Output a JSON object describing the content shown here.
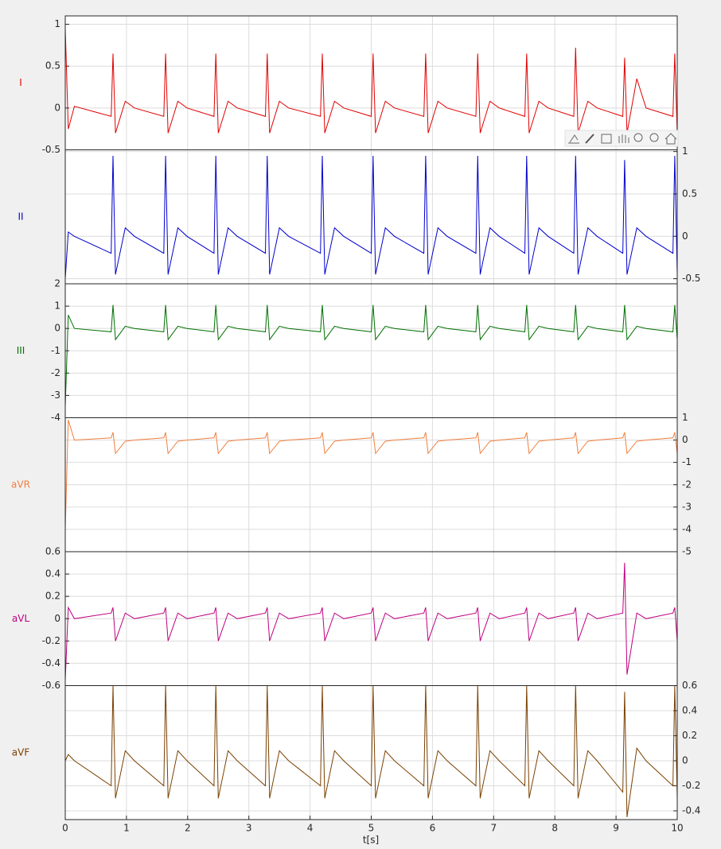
{
  "chart_data": {
    "type": "line",
    "xlabel": "t[s]",
    "grid": true,
    "xlim": [
      0,
      10
    ],
    "xticks": [
      0,
      1,
      2,
      3,
      4,
      5,
      6,
      7,
      8,
      9,
      10
    ],
    "x": [
      0,
      0.05,
      0.15,
      0.75,
      0.78,
      0.82,
      0.98,
      1.13,
      1.61,
      1.64,
      1.68,
      1.84,
      1.99,
      2.43,
      2.46,
      2.5,
      2.66,
      2.81,
      3.27,
      3.3,
      3.34,
      3.5,
      3.65,
      4.17,
      4.2,
      4.24,
      4.4,
      4.55,
      5,
      5.03,
      5.07,
      5.23,
      5.38,
      5.86,
      5.89,
      5.93,
      6.09,
      6.24,
      6.71,
      6.74,
      6.78,
      6.94,
      7.09,
      7.51,
      7.54,
      7.58,
      7.74,
      7.89,
      8.31,
      8.34,
      8.38,
      8.54,
      8.69,
      9.11,
      9.14,
      9.18,
      9.34,
      9.49,
      9.93,
      9.96,
      10
    ],
    "series": [
      {
        "name": "I",
        "color": "#e00000",
        "axis_side": "left",
        "ylim": [
          -0.5,
          1.1
        ],
        "yticks": [
          -0.5,
          0,
          0.5,
          1
        ],
        "values": [
          0.95,
          -0.25,
          0.02,
          -0.1,
          0.65,
          -0.3,
          0.08,
          0,
          -0.1,
          0.65,
          -0.3,
          0.08,
          0,
          -0.1,
          0.65,
          -0.3,
          0.08,
          0,
          -0.1,
          0.65,
          -0.3,
          0.08,
          0,
          -0.1,
          0.65,
          -0.3,
          0.08,
          0,
          -0.1,
          0.65,
          -0.3,
          0.08,
          0,
          -0.1,
          0.65,
          -0.3,
          0.08,
          0,
          -0.1,
          0.65,
          -0.3,
          0.08,
          0,
          -0.1,
          0.65,
          -0.3,
          0.08,
          0,
          -0.1,
          0.72,
          -0.3,
          0.08,
          0,
          -0.1,
          0.6,
          -0.3,
          0.35,
          0,
          -0.1,
          0.65,
          -0.3
        ]
      },
      {
        "name": "II",
        "color": "#0000cc",
        "axis_side": "right",
        "ylim": [
          -0.56,
          1.02
        ],
        "yticks": [
          -0.5,
          0,
          0.5,
          1
        ],
        "values": [
          -0.5,
          0.05,
          0,
          -0.2,
          0.95,
          -0.45,
          0.1,
          0,
          -0.2,
          0.95,
          -0.45,
          0.1,
          0,
          -0.2,
          0.95,
          -0.45,
          0.1,
          0,
          -0.2,
          0.95,
          -0.45,
          0.1,
          0,
          -0.2,
          0.95,
          -0.45,
          0.1,
          0,
          -0.2,
          0.95,
          -0.45,
          0.1,
          0,
          -0.2,
          0.95,
          -0.45,
          0.1,
          0,
          -0.2,
          0.95,
          -0.45,
          0.1,
          0,
          -0.2,
          0.95,
          -0.45,
          0.1,
          0,
          -0.2,
          0.95,
          -0.45,
          0.1,
          0,
          -0.2,
          0.9,
          -0.45,
          0.1,
          0,
          -0.2,
          0.95,
          -0.45
        ]
      },
      {
        "name": "III",
        "color": "#007000",
        "axis_side": "left",
        "ylim": [
          -4,
          2
        ],
        "yticks": [
          2,
          1,
          0,
          -1,
          -2,
          -3,
          -4
        ],
        "values": [
          -3.5,
          0.6,
          0,
          -0.15,
          1.05,
          -0.5,
          0.1,
          0,
          -0.15,
          1.05,
          -0.5,
          0.1,
          0,
          -0.15,
          1.05,
          -0.5,
          0.1,
          0,
          -0.15,
          1.05,
          -0.5,
          0.1,
          0,
          -0.15,
          1.05,
          -0.5,
          0.1,
          0,
          -0.15,
          1.05,
          -0.5,
          0.1,
          0,
          -0.15,
          1.05,
          -0.5,
          0.1,
          0,
          -0.15,
          1.05,
          -0.5,
          0.1,
          0,
          -0.15,
          1.05,
          -0.5,
          0.1,
          0,
          -0.15,
          1.05,
          -0.5,
          0.1,
          0,
          -0.15,
          1.05,
          -0.5,
          0.1,
          0,
          -0.15,
          1.05,
          -0.5
        ]
      },
      {
        "name": "aVR",
        "color": "#f07f3f",
        "axis_side": "right",
        "ylim": [
          -5,
          1
        ],
        "yticks": [
          1,
          0,
          -1,
          -2,
          -3,
          -4,
          -5
        ],
        "values": [
          -4,
          0.9,
          0,
          0.1,
          0.35,
          -0.6,
          -0.05,
          0,
          0.1,
          0.35,
          -0.6,
          -0.05,
          0,
          0.1,
          0.35,
          -0.6,
          -0.05,
          0,
          0.1,
          0.35,
          -0.6,
          -0.05,
          0,
          0.1,
          0.35,
          -0.6,
          -0.05,
          0,
          0.1,
          0.35,
          -0.6,
          -0.05,
          0,
          0.1,
          0.35,
          -0.6,
          -0.05,
          0,
          0.1,
          0.35,
          -0.6,
          -0.05,
          0,
          0.1,
          0.35,
          -0.6,
          -0.05,
          0,
          0.1,
          0.35,
          -0.6,
          -0.05,
          0,
          0.1,
          0.35,
          -0.6,
          -0.05,
          0,
          0.1,
          0.35,
          -0.6
        ]
      },
      {
        "name": "aVL",
        "color": "#c00080",
        "axis_side": "left",
        "ylim": [
          -0.6,
          0.6
        ],
        "yticks": [
          0.6,
          0.4,
          0.2,
          0,
          -0.2,
          -0.4,
          -0.6
        ],
        "values": [
          -0.55,
          0.1,
          0,
          0.05,
          0.1,
          -0.2,
          0.05,
          0,
          0.05,
          0.1,
          -0.2,
          0.05,
          0,
          0.05,
          0.1,
          -0.2,
          0.05,
          0,
          0.05,
          0.1,
          -0.2,
          0.05,
          0,
          0.05,
          0.1,
          -0.2,
          0.05,
          0,
          0.05,
          0.1,
          -0.2,
          0.05,
          0,
          0.05,
          0.1,
          -0.2,
          0.05,
          0,
          0.05,
          0.1,
          -0.2,
          0.05,
          0,
          0.05,
          0.1,
          -0.2,
          0.05,
          0,
          0.05,
          0.1,
          -0.2,
          0.05,
          0,
          0.05,
          0.5,
          -0.5,
          0.05,
          0,
          0.05,
          0.1,
          -0.2
        ]
      },
      {
        "name": "aVF",
        "color": "#7a4000",
        "axis_side": "right",
        "ylim": [
          -0.47,
          0.6
        ],
        "yticks": [
          0.6,
          0.4,
          0.2,
          0,
          -0.2,
          -0.4
        ],
        "values": [
          0,
          0.05,
          0,
          -0.2,
          0.6,
          -0.3,
          0.08,
          0,
          -0.2,
          0.6,
          -0.3,
          0.08,
          0,
          -0.2,
          0.6,
          -0.3,
          0.08,
          0,
          -0.2,
          0.6,
          -0.3,
          0.08,
          0,
          -0.2,
          0.6,
          -0.3,
          0.08,
          0,
          -0.2,
          0.6,
          -0.3,
          0.08,
          0,
          -0.2,
          0.6,
          -0.3,
          0.08,
          0,
          -0.2,
          0.6,
          -0.3,
          0.08,
          0,
          -0.2,
          0.6,
          -0.3,
          0.08,
          0,
          -0.2,
          0.6,
          -0.3,
          0.08,
          0,
          -0.25,
          0.55,
          -0.45,
          0.1,
          0,
          -0.2,
          0.6,
          -0.3
        ]
      }
    ]
  }
}
